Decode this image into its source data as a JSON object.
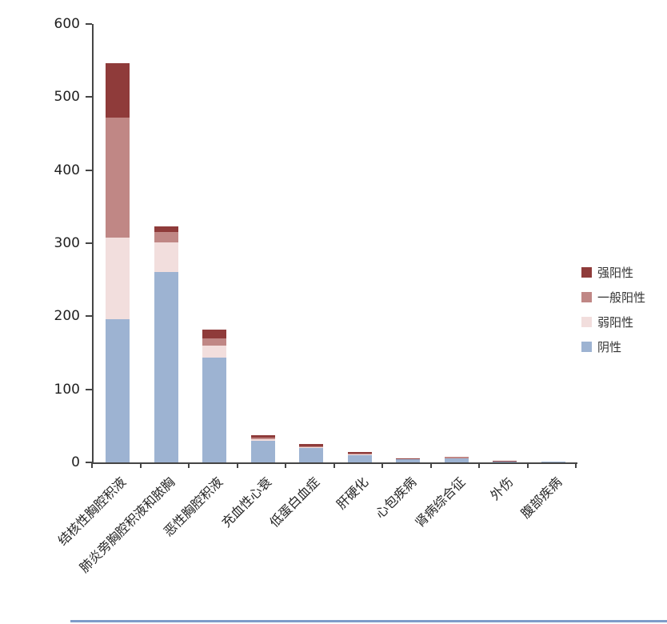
{
  "chart": {
    "bottom_divider_color": "#7E9CC9",
    "axis_color": "#454545"
  },
  "chart_data": {
    "type": "bar",
    "stacked": true,
    "title": "",
    "xlabel": "",
    "ylabel": "",
    "grid": false,
    "legend_position": "right",
    "categories": [
      "结核性胸腔积液",
      "肺炎旁胸腔积液和脓胸",
      "恶性胸腔积液",
      "充血性心衰",
      "低蛋白血症",
      "肝硬化",
      "心包疾病",
      "肾病综合征",
      "外伤",
      "腹部疾病"
    ],
    "series": [
      {
        "name": "阴性",
        "color": "#9DB3D2",
        "values": [
          196,
          261,
          143,
          30,
          20,
          10,
          4,
          6,
          1,
          1
        ]
      },
      {
        "name": "弱阳性",
        "color": "#F2DEDD",
        "values": [
          112,
          40,
          17,
          2,
          1,
          1,
          0,
          0,
          0,
          0
        ]
      },
      {
        "name": "一般阳性",
        "color": "#C08785",
        "values": [
          164,
          14,
          10,
          2,
          1,
          1,
          0,
          1,
          0,
          0
        ]
      },
      {
        "name": "强阳性",
        "color": "#8F3B3A",
        "values": [
          74,
          8,
          12,
          3,
          3,
          2,
          1,
          0,
          1,
          0
        ]
      }
    ],
    "legend": [
      "强阳性",
      "一般阳性",
      "弱阳性",
      "阴性"
    ],
    "ylim": [
      0,
      600
    ],
    "ytick_values": [
      0,
      100,
      200,
      300,
      400,
      500,
      600
    ]
  }
}
